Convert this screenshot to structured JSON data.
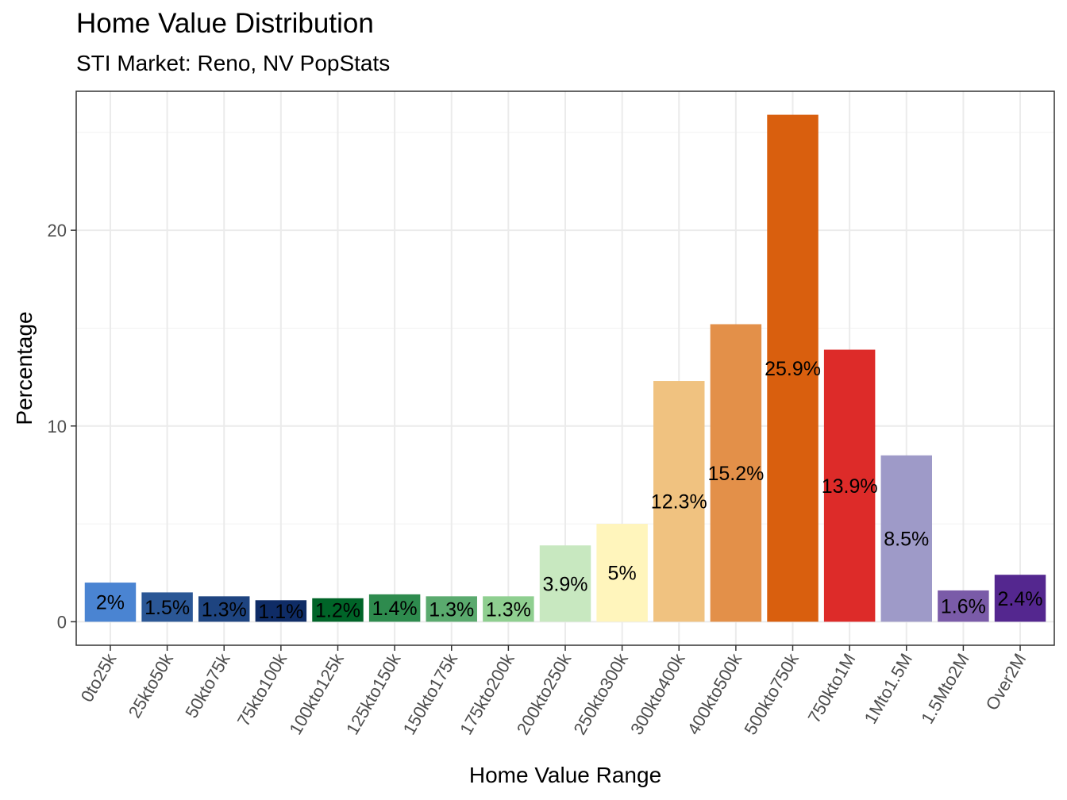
{
  "chart_data": {
    "type": "bar",
    "title": "Home Value Distribution",
    "subtitle": "STI Market: Reno, NV PopStats",
    "xlabel": "Home Value Range",
    "ylabel": "Percentage",
    "ylim": [
      -1.2,
      27.1
    ],
    "yticks": [
      0,
      10,
      20
    ],
    "ytick_labels": [
      "0",
      "10",
      "20"
    ],
    "grid": true,
    "legend": "none",
    "categories": [
      "0to25k",
      "25kto50k",
      "50kto75k",
      "75kto100k",
      "100kto125k",
      "125kto150k",
      "150kto175k",
      "175kto200k",
      "200kto250k",
      "250kto300k",
      "300kto400k",
      "400kto500k",
      "500kto750k",
      "750kto1M",
      "1Mto1.5M",
      "1.5Mto2M",
      "Over2M"
    ],
    "values": [
      2.0,
      1.5,
      1.3,
      1.1,
      1.2,
      1.4,
      1.3,
      1.3,
      3.9,
      5.0,
      12.3,
      15.2,
      25.9,
      13.9,
      8.5,
      1.6,
      2.4
    ],
    "labels": [
      "2%",
      "1.5%",
      "1.3%",
      "1.1%",
      "1.2%",
      "1.4%",
      "1.3%",
      "1.3%",
      "3.9%",
      "5%",
      "12.3%",
      "15.2%",
      "25.9%",
      "13.9%",
      "8.5%",
      "1.6%",
      "2.4%"
    ],
    "colors": [
      "#4a84d2",
      "#2b5796",
      "#1e4480",
      "#0f2c66",
      "#006428",
      "#2e8b4e",
      "#5aaa6e",
      "#8fcf90",
      "#c8e8c0",
      "#fff5bc",
      "#f0c280",
      "#e39049",
      "#d95f0e",
      "#dd2b29",
      "#9e9ac8",
      "#7a5ba8",
      "#54278f"
    ]
  }
}
